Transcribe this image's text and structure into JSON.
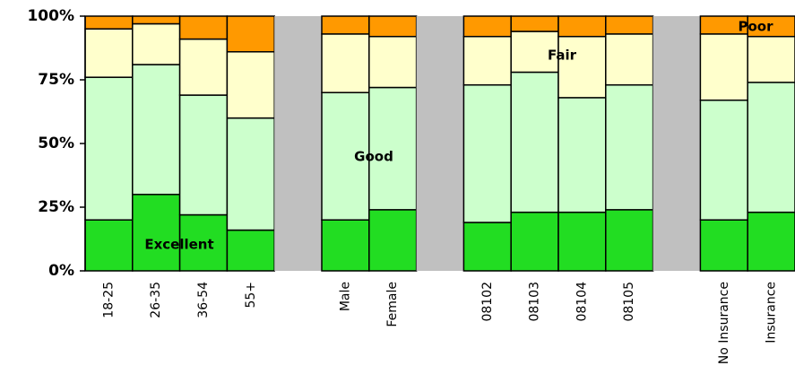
{
  "chart_data": {
    "type": "stacked-bar",
    "categories": [
      "18-25",
      "26-35",
      "36-54",
      "55+",
      null,
      "Male",
      "Female",
      null,
      "08102",
      "08103",
      "08104",
      "08105",
      null,
      "No Insurance",
      "Insurance"
    ],
    "series": [
      {
        "name": "Excellent",
        "color": "#22dd22",
        "values": [
          20,
          30,
          22,
          16,
          null,
          20,
          24,
          null,
          19,
          23,
          23,
          24,
          null,
          20,
          23
        ]
      },
      {
        "name": "Good",
        "color": "#ccffcc",
        "values": [
          56,
          51,
          47,
          44,
          null,
          50,
          48,
          null,
          54,
          55,
          45,
          49,
          null,
          47,
          51
        ]
      },
      {
        "name": "Fair",
        "color": "#ffffcc",
        "values": [
          19,
          16,
          22,
          26,
          null,
          23,
          20,
          null,
          19,
          16,
          24,
          20,
          null,
          26,
          18
        ]
      },
      {
        "name": "Poor",
        "color": "#ff9900",
        "values": [
          5,
          3,
          9,
          14,
          null,
          7,
          8,
          null,
          8,
          6,
          8,
          7,
          null,
          7,
          8
        ]
      }
    ],
    "gap_color": "#c0c0c0",
    "ylim": [
      0,
      100
    ],
    "yticks": [
      {
        "value": 0,
        "label": "0%"
      },
      {
        "value": 25,
        "label": "25%"
      },
      {
        "value": 50,
        "label": "50%"
      },
      {
        "value": 75,
        "label": "75%"
      },
      {
        "value": 100,
        "label": "100%"
      }
    ]
  }
}
